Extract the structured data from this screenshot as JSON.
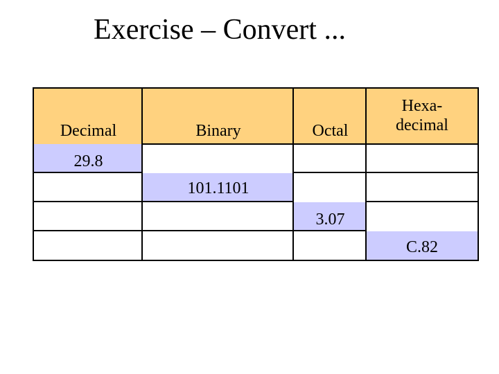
{
  "slide": {
    "title": "Exercise – Convert ..."
  },
  "table": {
    "headers": {
      "decimal": "Decimal",
      "binary": "Binary",
      "octal": "Octal",
      "hexadecimal_line1": "Hexa-",
      "hexadecimal_line2": "decimal"
    },
    "given_values": {
      "row1_decimal": "29.8",
      "row2_binary": "101.1101",
      "row3_octal": "3.07",
      "row4_hexadecimal": "C.82"
    }
  },
  "colors": {
    "header_fill": "#ffd27f",
    "value_fill": "#ccccff",
    "border": "#000000"
  }
}
